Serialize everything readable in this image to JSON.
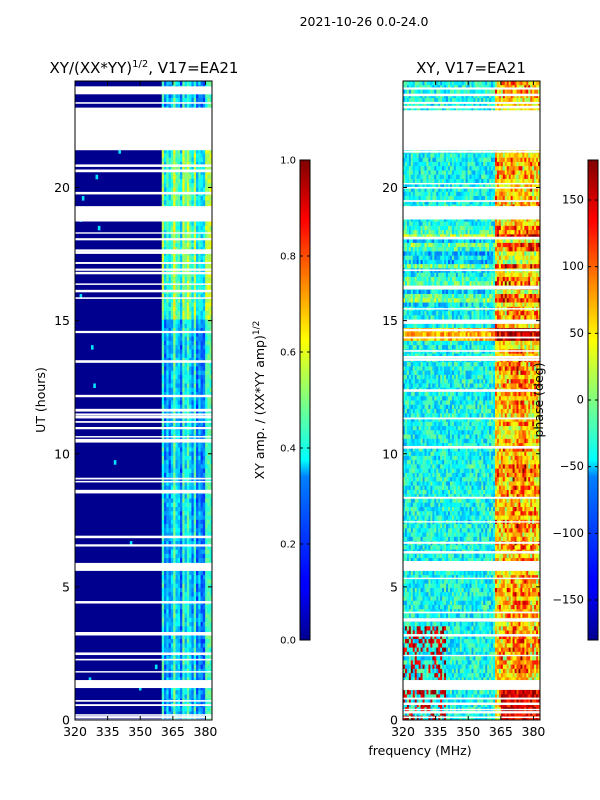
{
  "suptitle": "2021-10-26 0.0-24.0",
  "colors": {
    "nodata": "#ffffff",
    "low": "#00008f",
    "frame": "#000000"
  },
  "chart_data": [
    {
      "type": "heatmap",
      "title_main": "XY/(XX*YY)",
      "title_sup": "1/2",
      "title_rest": ", V17=EA21",
      "xlabel": "",
      "ylabel": "UT (hours)",
      "xlim": [
        320,
        383
      ],
      "ylim": [
        0,
        24
      ],
      "xticks": [
        "320",
        "335",
        "350",
        "365",
        "380"
      ],
      "yticks": [
        "0",
        "5",
        "10",
        "15",
        "20"
      ],
      "colormap": "jet",
      "colorbar": {
        "label_main": "XY amp. / (XX*YY amp)",
        "label_sup": "1/2",
        "range": [
          0.0,
          1.0
        ],
        "ticks": [
          "0.0",
          "0.2",
          "0.4",
          "0.6",
          "0.8",
          "1.0"
        ]
      },
      "flagged_hours": [
        [
          21.4,
          23.0
        ],
        [
          23.5,
          23.8
        ],
        [
          18.8,
          19.3
        ],
        [
          1.2,
          1.5
        ],
        [
          5.6,
          5.9
        ]
      ],
      "active_band_mhz": [
        360,
        383
      ]
    },
    {
      "type": "heatmap",
      "title": "XY, V17=EA21",
      "xlabel": "frequency (MHz)",
      "ylabel": "",
      "xlim": [
        320,
        383
      ],
      "ylim": [
        0,
        24
      ],
      "xticks": [
        "320",
        "335",
        "350",
        "365",
        "380"
      ],
      "yticks": [
        "0",
        "5",
        "10",
        "15",
        "20"
      ],
      "colormap": "jet",
      "colorbar": {
        "label": "phase (deg)",
        "range": [
          -180,
          180
        ],
        "ticks": [
          "-150",
          "-100",
          "-50",
          "0",
          "50",
          "100",
          "150"
        ]
      },
      "flagged_hours": [
        [
          21.4,
          22.9
        ],
        [
          18.8,
          19.3
        ],
        [
          1.2,
          1.5
        ],
        [
          5.6,
          5.9
        ]
      ],
      "active_band_mhz": [
        320,
        383
      ]
    }
  ]
}
